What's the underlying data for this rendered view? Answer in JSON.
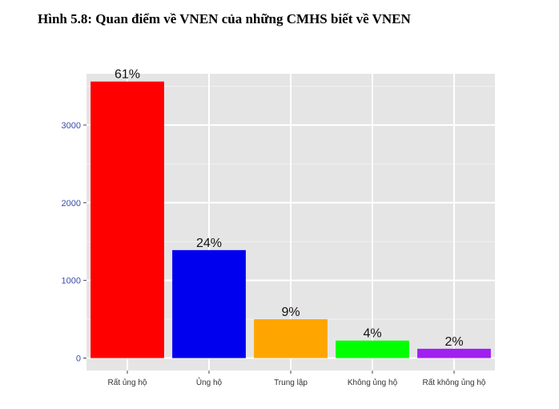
{
  "caption": "Hình 5.8: Quan điểm về VNEN của những CMHS biết về VNEN",
  "chart_data": {
    "type": "bar",
    "categories": [
      "Rất ủng hộ",
      "Ủng hộ",
      "Trung lập",
      "Không ủng hộ",
      "Rất không ủng hộ"
    ],
    "values": [
      3560,
      1390,
      500,
      225,
      120
    ],
    "data_labels": [
      "61%",
      "24%",
      "9%",
      "4%",
      "2%"
    ],
    "colors": [
      "#ff0000",
      "#0000ee",
      "#ffa500",
      "#00ff00",
      "#a020f0"
    ],
    "y_ticks": [
      0,
      1000,
      2000,
      3000
    ],
    "y_tick_labels": [
      "0",
      "1000",
      "2000",
      "3000"
    ],
    "ylim": [
      -160,
      3660
    ],
    "grid": true,
    "panel_background": "#e5e5e5",
    "title": "",
    "xlabel": "",
    "ylabel": ""
  }
}
